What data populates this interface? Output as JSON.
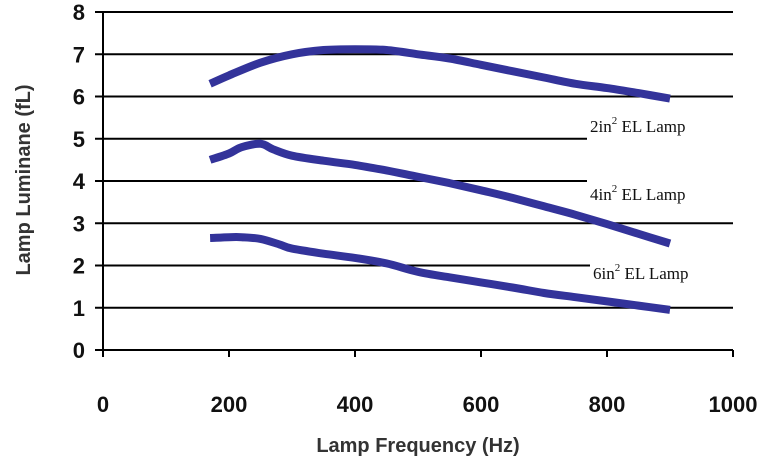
{
  "chart_data": {
    "type": "line",
    "xlabel": "Lamp Frequency (Hz)",
    "ylabel": "Lamp Luminane (fL)",
    "xlim": [
      0,
      1000
    ],
    "ylim": [
      0,
      8
    ],
    "x_ticks": [
      "0",
      "200",
      "400",
      "600",
      "800",
      "1000"
    ],
    "y_ticks": [
      "0",
      "1",
      "2",
      "3",
      "4",
      "5",
      "6",
      "7",
      "8"
    ],
    "grid": "horizontal",
    "line_color": "#33339a",
    "series": [
      {
        "label_prefix": "2in",
        "label_sup": "2",
        "label_suffix": " EL Lamp",
        "x": [
          170,
          200,
          250,
          300,
          350,
          400,
          450,
          500,
          550,
          600,
          650,
          700,
          750,
          800,
          850,
          900
        ],
        "values": [
          6.3,
          6.5,
          6.8,
          7.0,
          7.1,
          7.12,
          7.1,
          7.0,
          6.9,
          6.75,
          6.6,
          6.45,
          6.3,
          6.2,
          6.08,
          5.95
        ]
      },
      {
        "label_prefix": "4in",
        "label_sup": "2",
        "label_suffix": " EL Lamp",
        "x": [
          170,
          200,
          220,
          250,
          270,
          300,
          350,
          400,
          450,
          500,
          550,
          600,
          650,
          700,
          750,
          800,
          850,
          900
        ],
        "values": [
          4.5,
          4.65,
          4.8,
          4.88,
          4.75,
          4.6,
          4.48,
          4.38,
          4.25,
          4.1,
          3.95,
          3.78,
          3.6,
          3.4,
          3.2,
          2.98,
          2.75,
          2.52
        ]
      },
      {
        "label_prefix": "6in",
        "label_sup": "2",
        "label_suffix": " EL Lamp",
        "x": [
          170,
          200,
          220,
          250,
          280,
          300,
          350,
          400,
          450,
          500,
          550,
          600,
          650,
          700,
          750,
          800,
          850,
          900
        ],
        "values": [
          2.65,
          2.67,
          2.67,
          2.63,
          2.5,
          2.4,
          2.28,
          2.18,
          2.05,
          1.85,
          1.72,
          1.6,
          1.48,
          1.35,
          1.25,
          1.15,
          1.05,
          0.95
        ]
      }
    ]
  }
}
